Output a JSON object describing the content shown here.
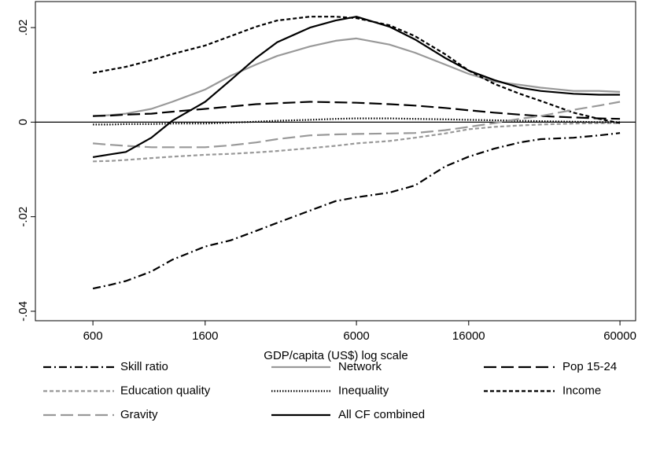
{
  "chart_data": {
    "type": "line",
    "xlabel": "GDP/capita (US$) log scale",
    "xscale": "log",
    "xlim": [
      363,
      68800
    ],
    "xticks": [
      600,
      1600,
      6000,
      16000,
      60000
    ],
    "ylim": [
      -0.042,
      0.0255
    ],
    "yticks": [
      {
        "value": 0.02,
        "label": ".02"
      },
      0,
      {
        "value": -0.02,
        "label": "-.02"
      },
      {
        "value": -0.04,
        "label": "-.04"
      }
    ],
    "zero_line": true,
    "legend": "bottom",
    "legend_columns": 3,
    "x": [
      600,
      700,
      800,
      1000,
      1200,
      1600,
      2000,
      2500,
      3000,
      4000,
      5000,
      6000,
      8000,
      10000,
      13000,
      16000,
      20000,
      25000,
      30000,
      40000,
      50000,
      60000
    ],
    "series": [
      {
        "name": "Skill ratio",
        "color": "#000000",
        "style": "dashdot",
        "values": [
          -0.0352,
          -0.0344,
          -0.0336,
          -0.0316,
          -0.0291,
          -0.0263,
          -0.025,
          -0.023,
          -0.0213,
          -0.0187,
          -0.0167,
          -0.0159,
          -0.0149,
          -0.0134,
          -0.0094,
          -0.0073,
          -0.0056,
          -0.0043,
          -0.0036,
          -0.0033,
          -0.0028,
          -0.0023
        ]
      },
      {
        "name": "Network",
        "color": "#999999",
        "style": "solid",
        "values": [
          0.0013,
          0.0015,
          0.0018,
          0.0028,
          0.0043,
          0.0069,
          0.0098,
          0.0122,
          0.014,
          0.016,
          0.0172,
          0.0177,
          0.0164,
          0.0147,
          0.0122,
          0.0102,
          0.0086,
          0.0079,
          0.0073,
          0.0066,
          0.0066,
          0.0064
        ]
      },
      {
        "name": "Pop 15-24",
        "color": "#000000",
        "style": "longdash",
        "values": [
          0.0013,
          0.0014,
          0.0016,
          0.0018,
          0.0022,
          0.0028,
          0.0033,
          0.0038,
          0.004,
          0.0043,
          0.0042,
          0.0041,
          0.0038,
          0.0035,
          0.003,
          0.0025,
          0.002,
          0.0016,
          0.0013,
          0.001,
          0.0008,
          0.0007
        ]
      },
      {
        "name": "Education quality",
        "color": "#999999",
        "style": "shortdash",
        "values": [
          -0.0083,
          -0.0082,
          -0.008,
          -0.0076,
          -0.0073,
          -0.0069,
          -0.0067,
          -0.0064,
          -0.0061,
          -0.0055,
          -0.005,
          -0.0045,
          -0.004,
          -0.0033,
          -0.0024,
          -0.0015,
          -0.001,
          -0.0007,
          -0.0005,
          -0.0003,
          -0.0002,
          -0.0002
        ]
      },
      {
        "name": "Inequality",
        "color": "#000000",
        "style": "dotted",
        "values": [
          -0.0005,
          -0.0005,
          -0.0004,
          -0.0004,
          -0.0003,
          -0.0003,
          -0.0001,
          0.0001,
          0.0003,
          0.0005,
          0.0007,
          0.0008,
          0.0008,
          0.0007,
          0.0006,
          0.0005,
          0.0004,
          0.0003,
          0.0002,
          0.0001,
          0,
          0
        ]
      },
      {
        "name": "Income",
        "color": "#000000",
        "style": "shortdash",
        "values": [
          0.0104,
          0.0111,
          0.0117,
          0.0131,
          0.0144,
          0.0162,
          0.0182,
          0.0202,
          0.0215,
          0.0223,
          0.0223,
          0.022,
          0.0205,
          0.0182,
          0.0144,
          0.0109,
          0.0081,
          0.006,
          0.0045,
          0.002,
          0.0007,
          -0.0002
        ]
      },
      {
        "name": "Gravity",
        "color": "#999999",
        "style": "longdash",
        "values": [
          -0.0045,
          -0.0048,
          -0.005,
          -0.0053,
          -0.0053,
          -0.0053,
          -0.0049,
          -0.0043,
          -0.0036,
          -0.0028,
          -0.0026,
          -0.0025,
          -0.0024,
          -0.0023,
          -0.0017,
          -0.001,
          -0.0002,
          0.0007,
          0.0013,
          0.0026,
          0.0035,
          0.0043
        ]
      },
      {
        "name": "All CF combined",
        "color": "#000000",
        "style": "solid",
        "values": [
          -0.0074,
          -0.0068,
          -0.0063,
          -0.0033,
          0.0003,
          0.0043,
          0.0089,
          0.0136,
          0.0169,
          0.02,
          0.0215,
          0.0223,
          0.0202,
          0.0175,
          0.0136,
          0.0109,
          0.0089,
          0.0073,
          0.0066,
          0.006,
          0.0058,
          0.0058
        ]
      }
    ]
  }
}
